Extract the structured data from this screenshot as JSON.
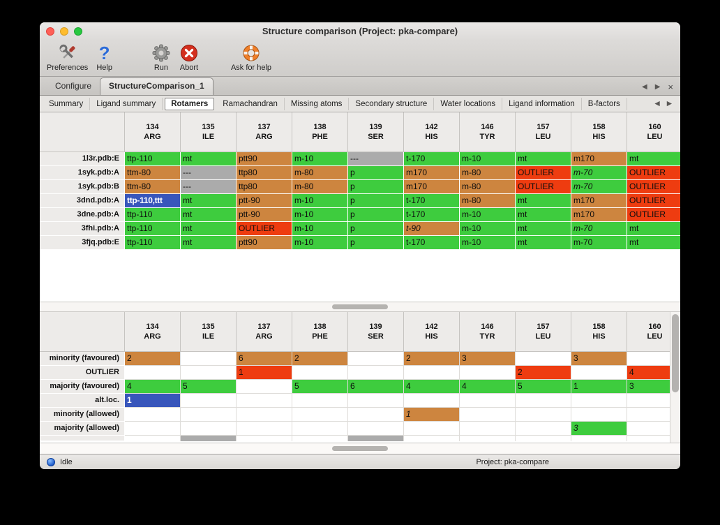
{
  "window": {
    "title": "Structure comparison (Project: pka-compare)"
  },
  "colors": {
    "majority": "#3ecc3e",
    "minority": "#cd853f",
    "outlier": "#ee3c10",
    "nodata": "#ababab",
    "selection": "#3856bb"
  },
  "toolbar": {
    "items": [
      {
        "label": "Preferences"
      },
      {
        "label": "Help"
      },
      {
        "label": "Run"
      },
      {
        "label": "Abort"
      },
      {
        "label": "Ask for help"
      }
    ]
  },
  "tabbar": {
    "tabs": [
      {
        "label": "Configure",
        "selected": false
      },
      {
        "label": "StructureComparison_1",
        "selected": true
      }
    ],
    "nav": {
      "left": "◀",
      "right": "▶",
      "close": "×"
    }
  },
  "subtabbar": {
    "tabs": [
      "Summary",
      "Ligand summary",
      "Rotamers",
      "Ramachandran",
      "Missing atoms",
      "Secondary structure",
      "Water locations",
      "Ligand information",
      "B-factors"
    ],
    "selected": "Rotamers",
    "nav": {
      "left": "◀",
      "right": "▶"
    }
  },
  "columns": [
    {
      "num": "134",
      "name": "ARG"
    },
    {
      "num": "135",
      "name": "ILE"
    },
    {
      "num": "137",
      "name": "ARG"
    },
    {
      "num": "138",
      "name": "PHE"
    },
    {
      "num": "139",
      "name": "SER"
    },
    {
      "num": "142",
      "name": "HIS"
    },
    {
      "num": "146",
      "name": "TYR"
    },
    {
      "num": "157",
      "name": "LEU"
    },
    {
      "num": "158",
      "name": "HIS"
    },
    {
      "num": "160",
      "name": "LEU"
    }
  ],
  "structures_table": {
    "rows": [
      {
        "label": "1l3r.pdb:E",
        "cells": [
          {
            "t": "ttp-110",
            "s": "majority"
          },
          {
            "t": "mt",
            "s": "majority"
          },
          {
            "t": "ptt90",
            "s": "minority"
          },
          {
            "t": "m-10",
            "s": "majority"
          },
          {
            "t": "---",
            "s": "nodata"
          },
          {
            "t": "t-170",
            "s": "majority"
          },
          {
            "t": "m-10",
            "s": "majority"
          },
          {
            "t": "mt",
            "s": "majority"
          },
          {
            "t": "m170",
            "s": "minority"
          },
          {
            "t": "mt",
            "s": "majority"
          }
        ]
      },
      {
        "label": "1syk.pdb:A",
        "cells": [
          {
            "t": "ttm-80",
            "s": "minority"
          },
          {
            "t": "---",
            "s": "nodata"
          },
          {
            "t": "ttp80",
            "s": "minority"
          },
          {
            "t": "m-80",
            "s": "minority"
          },
          {
            "t": "p",
            "s": "majority"
          },
          {
            "t": "m170",
            "s": "minority"
          },
          {
            "t": "m-80",
            "s": "minority"
          },
          {
            "t": "OUTLIER",
            "s": "outlier"
          },
          {
            "t": "m-70",
            "s": "majority",
            "i": true
          },
          {
            "t": "OUTLIER",
            "s": "outlier"
          }
        ]
      },
      {
        "label": "1syk.pdb:B",
        "cells": [
          {
            "t": "ttm-80",
            "s": "minority"
          },
          {
            "t": "---",
            "s": "nodata"
          },
          {
            "t": "ttp80",
            "s": "minority"
          },
          {
            "t": "m-80",
            "s": "minority"
          },
          {
            "t": "p",
            "s": "majority"
          },
          {
            "t": "m170",
            "s": "minority"
          },
          {
            "t": "m-80",
            "s": "minority"
          },
          {
            "t": "OUTLIER",
            "s": "outlier"
          },
          {
            "t": "m-70",
            "s": "majority",
            "i": true
          },
          {
            "t": "OUTLIER",
            "s": "outlier"
          }
        ]
      },
      {
        "label": "3dnd.pdb:A",
        "cells": [
          {
            "t": "ttp-110,ttt",
            "s": "selection"
          },
          {
            "t": "mt",
            "s": "majority"
          },
          {
            "t": "ptt-90",
            "s": "minority"
          },
          {
            "t": "m-10",
            "s": "majority"
          },
          {
            "t": "p",
            "s": "majority"
          },
          {
            "t": "t-170",
            "s": "majority"
          },
          {
            "t": "m-80",
            "s": "minority"
          },
          {
            "t": "mt",
            "s": "majority"
          },
          {
            "t": "m170",
            "s": "minority"
          },
          {
            "t": "OUTLIER",
            "s": "outlier"
          }
        ]
      },
      {
        "label": "3dne.pdb:A",
        "cells": [
          {
            "t": "ttp-110",
            "s": "majority"
          },
          {
            "t": "mt",
            "s": "majority"
          },
          {
            "t": "ptt-90",
            "s": "minority"
          },
          {
            "t": "m-10",
            "s": "majority"
          },
          {
            "t": "p",
            "s": "majority"
          },
          {
            "t": "t-170",
            "s": "majority"
          },
          {
            "t": "m-10",
            "s": "majority"
          },
          {
            "t": "mt",
            "s": "majority"
          },
          {
            "t": "m170",
            "s": "minority"
          },
          {
            "t": "OUTLIER",
            "s": "outlier"
          }
        ]
      },
      {
        "label": "3fhi.pdb:A",
        "cells": [
          {
            "t": "ttp-110",
            "s": "majority"
          },
          {
            "t": "mt",
            "s": "majority"
          },
          {
            "t": "OUTLIER",
            "s": "outlier"
          },
          {
            "t": "m-10",
            "s": "majority"
          },
          {
            "t": "p",
            "s": "majority"
          },
          {
            "t": "t-90",
            "s": "minority",
            "i": true
          },
          {
            "t": "m-10",
            "s": "majority"
          },
          {
            "t": "mt",
            "s": "majority"
          },
          {
            "t": "m-70",
            "s": "majority",
            "i": true
          },
          {
            "t": "mt",
            "s": "majority"
          }
        ]
      },
      {
        "label": "3fjq.pdb:E",
        "cells": [
          {
            "t": "ttp-110",
            "s": "majority"
          },
          {
            "t": "mt",
            "s": "majority"
          },
          {
            "t": "ptt90",
            "s": "minority"
          },
          {
            "t": "m-10",
            "s": "majority"
          },
          {
            "t": "p",
            "s": "majority"
          },
          {
            "t": "t-170",
            "s": "majority"
          },
          {
            "t": "m-10",
            "s": "majority"
          },
          {
            "t": "mt",
            "s": "majority"
          },
          {
            "t": "m-70",
            "s": "majority"
          },
          {
            "t": "mt",
            "s": "majority"
          }
        ]
      }
    ]
  },
  "summary_table": {
    "rows": [
      {
        "label": "minority (favoured)",
        "cells": [
          {
            "t": "2",
            "s": "minority"
          },
          {
            "t": "",
            "s": "empty"
          },
          {
            "t": "6",
            "s": "minority"
          },
          {
            "t": "2",
            "s": "minority"
          },
          {
            "t": "",
            "s": "empty"
          },
          {
            "t": "2",
            "s": "minority"
          },
          {
            "t": "3",
            "s": "minority"
          },
          {
            "t": "",
            "s": "empty"
          },
          {
            "t": "3",
            "s": "minority"
          },
          {
            "t": "",
            "s": "empty"
          }
        ]
      },
      {
        "label": "OUTLIER",
        "cells": [
          {
            "t": "",
            "s": "empty"
          },
          {
            "t": "",
            "s": "empty"
          },
          {
            "t": "1",
            "s": "outlier"
          },
          {
            "t": "",
            "s": "empty"
          },
          {
            "t": "",
            "s": "empty"
          },
          {
            "t": "",
            "s": "empty"
          },
          {
            "t": "",
            "s": "empty"
          },
          {
            "t": "2",
            "s": "outlier"
          },
          {
            "t": "",
            "s": "empty"
          },
          {
            "t": "4",
            "s": "outlier"
          }
        ]
      },
      {
        "label": "majority (favoured)",
        "cells": [
          {
            "t": "4",
            "s": "majority"
          },
          {
            "t": "5",
            "s": "majority"
          },
          {
            "t": "",
            "s": "empty"
          },
          {
            "t": "5",
            "s": "majority"
          },
          {
            "t": "6",
            "s": "majority"
          },
          {
            "t": "4",
            "s": "majority"
          },
          {
            "t": "4",
            "s": "majority"
          },
          {
            "t": "5",
            "s": "majority"
          },
          {
            "t": "1",
            "s": "majority"
          },
          {
            "t": "3",
            "s": "majority"
          }
        ]
      },
      {
        "label": "alt.loc.",
        "cells": [
          {
            "t": "1",
            "s": "selection"
          },
          {
            "t": "",
            "s": "empty"
          },
          {
            "t": "",
            "s": "empty"
          },
          {
            "t": "",
            "s": "empty"
          },
          {
            "t": "",
            "s": "empty"
          },
          {
            "t": "",
            "s": "empty"
          },
          {
            "t": "",
            "s": "empty"
          },
          {
            "t": "",
            "s": "empty"
          },
          {
            "t": "",
            "s": "empty"
          },
          {
            "t": "",
            "s": "empty"
          }
        ]
      },
      {
        "label": "minority (allowed)",
        "cells": [
          {
            "t": "",
            "s": "empty"
          },
          {
            "t": "",
            "s": "empty"
          },
          {
            "t": "",
            "s": "empty"
          },
          {
            "t": "",
            "s": "empty"
          },
          {
            "t": "",
            "s": "empty"
          },
          {
            "t": "1",
            "s": "minority",
            "i": true
          },
          {
            "t": "",
            "s": "empty"
          },
          {
            "t": "",
            "s": "empty"
          },
          {
            "t": "",
            "s": "empty"
          },
          {
            "t": "",
            "s": "empty"
          }
        ]
      },
      {
        "label": "majority (allowed)",
        "cells": [
          {
            "t": "",
            "s": "empty"
          },
          {
            "t": "",
            "s": "empty"
          },
          {
            "t": "",
            "s": "empty"
          },
          {
            "t": "",
            "s": "empty"
          },
          {
            "t": "",
            "s": "empty"
          },
          {
            "t": "",
            "s": "empty"
          },
          {
            "t": "",
            "s": "empty"
          },
          {
            "t": "",
            "s": "empty"
          },
          {
            "t": "3",
            "s": "majority",
            "i": true
          },
          {
            "t": "",
            "s": "empty"
          }
        ]
      }
    ],
    "partial_gray_columns": [
      1,
      4
    ]
  },
  "statusbar": {
    "status": "Idle",
    "project": "Project: pka-compare"
  }
}
